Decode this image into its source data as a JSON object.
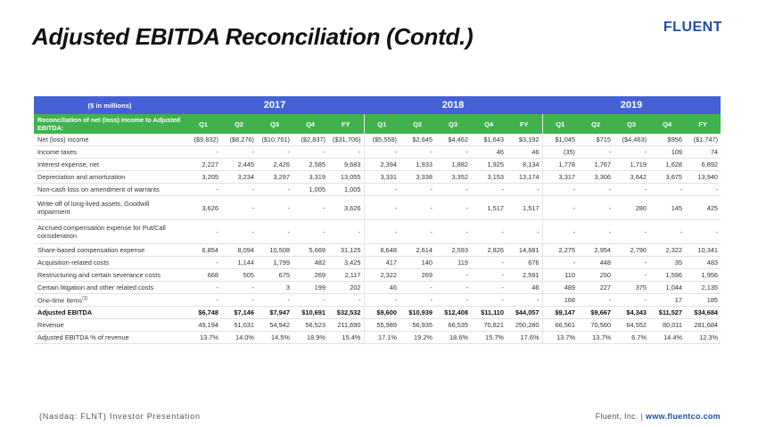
{
  "page": {
    "title": "Adjusted EBITDA Reconciliation (Contd.)",
    "logo": "FLUENT"
  },
  "table": {
    "unit_label": "($ in millions)",
    "years": [
      "2017",
      "2018",
      "2019"
    ],
    "header_label": "Reconciliation of net (loss) income to Adjusted EBITDA:",
    "periods": [
      "Q1",
      "Q2",
      "Q3",
      "Q4",
      "FY",
      "Q1",
      "Q2",
      "Q3",
      "Q4",
      "FY",
      "Q1",
      "Q2",
      "Q3",
      "Q4",
      "FY"
    ],
    "rows": [
      {
        "label": "Net (loss) income",
        "values": [
          "($9,832)",
          "($8,276)",
          "($10,761)",
          "($2,837)",
          "($31,706)",
          "($5,558)",
          "$2,645",
          "$4,462",
          "$1,643",
          "$3,192",
          "$1,045",
          "$715",
          "($4,463)",
          "$956",
          "($1,747)"
        ]
      },
      {
        "label": "Income taxes",
        "values": [
          "-",
          "-",
          "-",
          "-",
          "-",
          "-",
          "-",
          "-",
          "46",
          "46",
          "(35)",
          "-",
          "-",
          "109",
          "74"
        ]
      },
      {
        "label": "Interest expense, net",
        "values": [
          "2,227",
          "2,445",
          "2,426",
          "2,585",
          "9,683",
          "2,394",
          "1,933",
          "1,882",
          "1,925",
          "8,134",
          "1,778",
          "1,767",
          "1,719",
          "1,628",
          "6,892"
        ]
      },
      {
        "label": "Depreciation and amortization",
        "values": [
          "3,205",
          "3,234",
          "3,297",
          "3,319",
          "13,055",
          "3,331",
          "3,338",
          "3,352",
          "3,153",
          "13,174",
          "3,317",
          "3,306",
          "3,642",
          "3,675",
          "13,940"
        ]
      },
      {
        "label": "Non-cash loss on amendment of warrants",
        "values": [
          "-",
          "-",
          "-",
          "1,005",
          "1,005",
          "-",
          "-",
          "-",
          "-",
          "-",
          "-",
          "-",
          "-",
          "-",
          "-"
        ]
      },
      {
        "label": "Write-off of long-lived assets, Goodwill impairment",
        "tall": true,
        "values": [
          "3,626",
          "-",
          "-",
          "-",
          "3,626",
          "-",
          "-",
          "-",
          "1,517",
          "1,517",
          "-",
          "-",
          "280",
          "145",
          "425"
        ]
      },
      {
        "label": "Accrued compensation expense for Put/Call consideration",
        "tall": true,
        "values": [
          "-",
          "-",
          "-",
          "-",
          "-",
          "-",
          "-",
          "-",
          "-",
          "-",
          "-",
          "-",
          "-",
          "-",
          "-"
        ]
      },
      {
        "label": "Share-based compensation expense",
        "values": [
          "6,854",
          "8,094",
          "10,508",
          "5,669",
          "31,125",
          "6,648",
          "2,614",
          "2,593",
          "2,826",
          "14,681",
          "2,275",
          "2,954",
          "2,790",
          "2,322",
          "10,341"
        ]
      },
      {
        "label": "Acquisition-related costs",
        "values": [
          "-",
          "1,144",
          "1,799",
          "482",
          "3,425",
          "417",
          "140",
          "119",
          "-",
          "676",
          "-",
          "448",
          "-",
          "35",
          "483"
        ]
      },
      {
        "label": "Restructuring and certain severance costs",
        "values": [
          "668",
          "505",
          "675",
          "269",
          "2,117",
          "2,322",
          "269",
          "-",
          "-",
          "2,591",
          "110",
          "250",
          "-",
          "1,596",
          "1,956"
        ]
      },
      {
        "label": "Certain litigation and other related costs",
        "values": [
          "-",
          "-",
          "3",
          "199",
          "202",
          "46",
          "-",
          "-",
          "-",
          "46",
          "489",
          "227",
          "375",
          "1,044",
          "2,135"
        ]
      },
      {
        "label": "One-time items",
        "sup": "(1)",
        "values": [
          "-",
          "-",
          "-",
          "-",
          "-",
          "-",
          "-",
          "-",
          "-",
          "-",
          "168",
          "-",
          "-",
          "17",
          "185"
        ]
      },
      {
        "label": "Adjusted EBITDA",
        "bold": true,
        "values": [
          "$6,748",
          "$7,146",
          "$7,947",
          "$10,691",
          "$32,532",
          "$9,600",
          "$10,939",
          "$12,408",
          "$11,110",
          "$44,057",
          "$9,147",
          "$9,667",
          "$4,343",
          "$11,527",
          "$34,684"
        ]
      },
      {
        "label": "Revenue",
        "values": [
          "49,194",
          "51,031",
          "54,942",
          "56,523",
          "211,690",
          "55,989",
          "56,935",
          "66,535",
          "70,821",
          "250,280",
          "66,561",
          "70,560",
          "64,552",
          "80,011",
          "281,684"
        ]
      },
      {
        "label": "Adjusted EBITDA % of revenue",
        "values": [
          "13.7%",
          "14.0%",
          "14.5%",
          "18.9%",
          "15.4%",
          "17.1%",
          "19.2%",
          "18.6%",
          "15.7%",
          "17.6%",
          "13.7%",
          "13.7%",
          "6.7%",
          "14.4%",
          "12.3%"
        ]
      }
    ]
  },
  "footer": {
    "left": "(Nasdaq: FLNT) Investor Presentation",
    "right_prefix": "Fluent, Inc. | ",
    "url": "www.fluentco.com"
  }
}
